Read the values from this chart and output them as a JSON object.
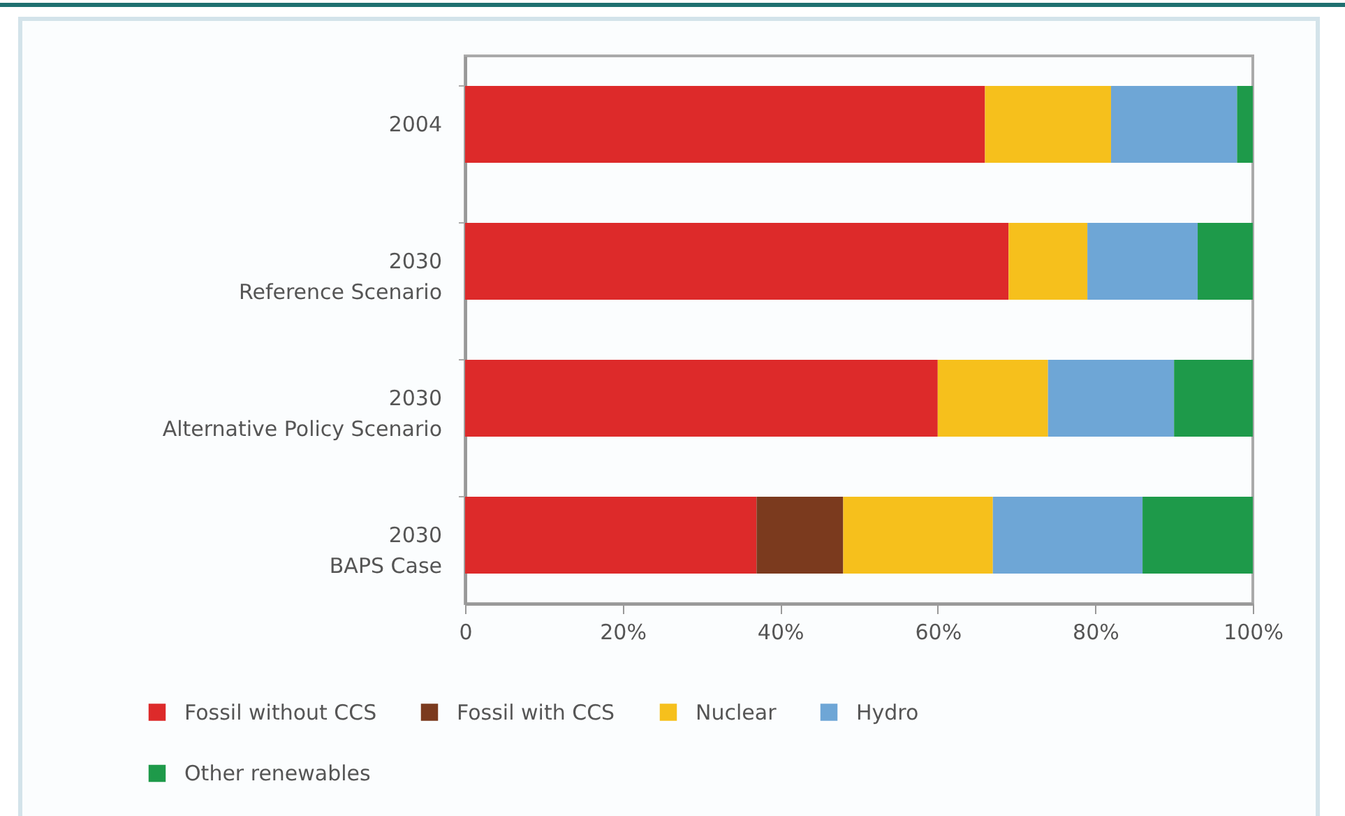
{
  "chart_data": {
    "type": "bar",
    "orientation": "horizontal",
    "stacked": true,
    "categories": [
      "2004",
      "2030\nReference Scenario",
      "2030\nAlternative Policy Scenario",
      "2030\nBAPS Case"
    ],
    "series": [
      {
        "name": "Fossil without CCS",
        "color": "#dd2a2a",
        "values": [
          66,
          69,
          60,
          37
        ]
      },
      {
        "name": "Fossil with CCS",
        "color": "#7b3a1e",
        "values": [
          null,
          null,
          null,
          11
        ]
      },
      {
        "name": "Nuclear",
        "color": "#f6c01c",
        "values": [
          16,
          10,
          14,
          19
        ]
      },
      {
        "name": "Hydro",
        "color": "#6ea6d6",
        "values": [
          16,
          14,
          16,
          19
        ]
      },
      {
        "name": "Other renewables",
        "color": "#1e9a4a",
        "values": [
          2,
          7,
          10,
          14
        ]
      }
    ],
    "xlim": [
      0,
      100
    ],
    "xticks": [
      0,
      {
        "value": 20,
        "label": "20%"
      },
      {
        "value": 40,
        "label": "40%"
      },
      {
        "value": 60,
        "label": "60%"
      },
      {
        "value": 80,
        "label": "80%"
      },
      {
        "value": 100,
        "label": "100%"
      }
    ],
    "legend": "bottom",
    "grid": false
  }
}
